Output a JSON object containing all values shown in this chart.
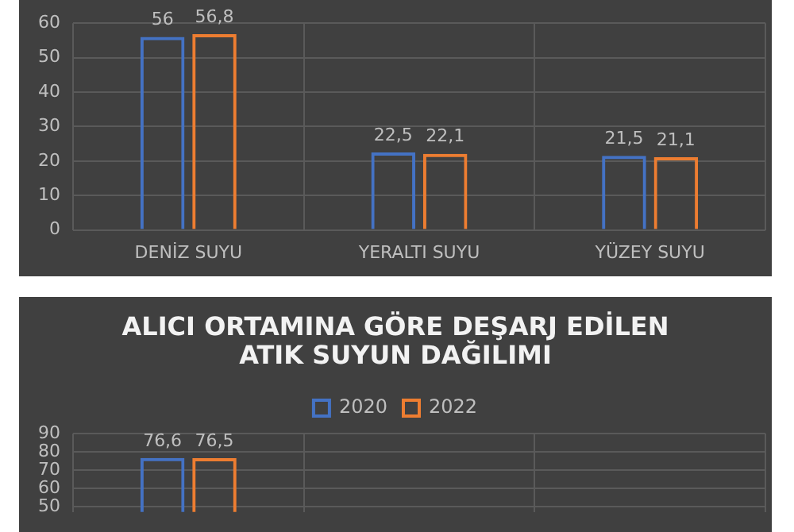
{
  "chart_data": [
    {
      "type": "bar",
      "categories": [
        "DENİZ SUYU",
        "YERALTI SUYU",
        "YÜZEY SUYU"
      ],
      "series": [
        {
          "color": "#4472c4",
          "values": [
            56,
            22.5,
            21.5
          ],
          "value_labels": [
            "56",
            "22,5",
            "21,5"
          ]
        },
        {
          "color": "#ed7d31",
          "values": [
            56.8,
            22.1,
            21.1
          ],
          "value_labels": [
            "56,8",
            "22,1",
            "21,1"
          ]
        }
      ],
      "ylim": [
        0,
        60
      ],
      "yticks": [
        0,
        10,
        20,
        30,
        40,
        50,
        60
      ],
      "grid": true,
      "legend": false
    },
    {
      "type": "bar",
      "title": "ALICI ORTAMINA GÖRE DEŞARJ EDİLEN ATIK SUYUN DAĞILIMI",
      "categories": [
        null,
        null,
        null
      ],
      "series": [
        {
          "name": "2020",
          "color": "#4472c4",
          "values": [
            76.6,
            null,
            null
          ],
          "value_labels": [
            "76,6",
            null,
            null
          ]
        },
        {
          "name": "2022",
          "color": "#ed7d31",
          "values": [
            76.5,
            null,
            null
          ],
          "value_labels": [
            "76,5",
            null,
            null
          ]
        }
      ],
      "ylim": [
        47,
        90
      ],
      "yticks": [
        50,
        60,
        70,
        80,
        90
      ],
      "grid": true,
      "legend": "top",
      "tick_labels": "y"
    }
  ]
}
